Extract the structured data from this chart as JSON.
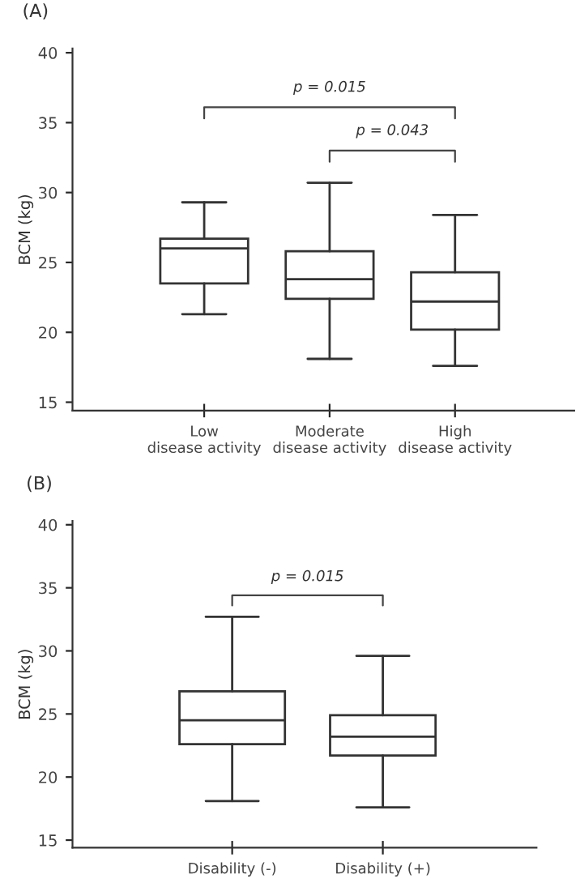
{
  "chart_data": [
    {
      "type": "box",
      "title": "(A)",
      "ylabel": "BCM (kg)",
      "categories": [
        "Low\ndisease activity",
        "Moderate\ndisease activity",
        "High\ndisease activity"
      ],
      "boxes": [
        {
          "low": 21.3,
          "q1": 23.5,
          "median": 26.0,
          "q3": 26.7,
          "high": 29.3
        },
        {
          "low": 18.1,
          "q1": 22.4,
          "median": 23.8,
          "q3": 25.8,
          "high": 30.7
        },
        {
          "low": 17.6,
          "q1": 20.2,
          "median": 22.2,
          "q3": 24.3,
          "high": 28.4
        }
      ],
      "ylim": [
        14.4,
        40.3
      ],
      "yticks": [
        15,
        20,
        25,
        30,
        35,
        40
      ],
      "grid": false,
      "annotations": [
        "p = 0.015",
        "p = 0.043"
      ]
    },
    {
      "type": "box",
      "title": "(B)",
      "ylabel": "BCM (kg)",
      "categories": [
        "Disability (-)",
        "Disability (+)"
      ],
      "boxes": [
        {
          "low": 18.1,
          "q1": 22.6,
          "median": 24.5,
          "q3": 26.8,
          "high": 32.7
        },
        {
          "low": 17.6,
          "q1": 21.7,
          "median": 23.2,
          "q3": 24.9,
          "high": 29.6
        }
      ],
      "ylim": [
        14.4,
        40.3
      ],
      "yticks": [
        15,
        20,
        25,
        30,
        35,
        40
      ],
      "grid": false,
      "annotations": [
        "p = 0.015"
      ]
    }
  ]
}
